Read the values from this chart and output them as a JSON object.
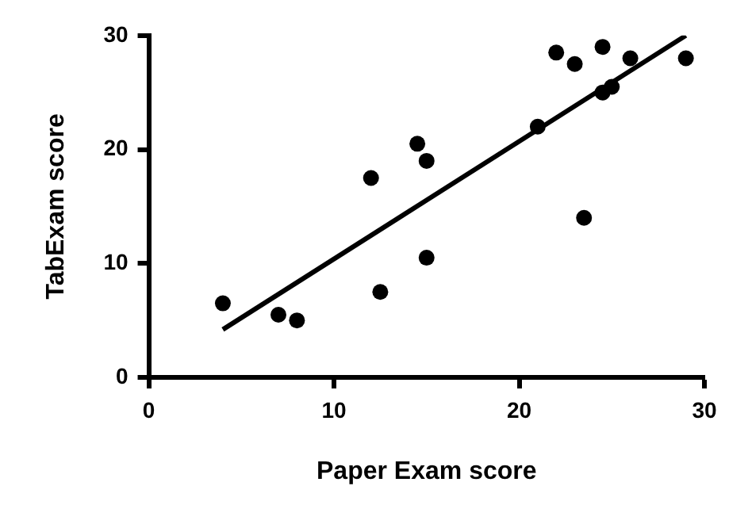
{
  "chart_data": {
    "type": "scatter",
    "xlabel": "Paper Exam score",
    "ylabel": "TabExam score",
    "xlim": [
      0,
      30
    ],
    "ylim": [
      0,
      30
    ],
    "xticks": [
      0,
      10,
      20,
      30
    ],
    "yticks": [
      0,
      10,
      20,
      30
    ],
    "grid": false,
    "legend": false,
    "marker": "circle",
    "series": [
      {
        "color": "#000000",
        "x": [
          4,
          7,
          8,
          12,
          12.5,
          14.5,
          15,
          15,
          21,
          22,
          23,
          23.5,
          24.5,
          24.5,
          25,
          26,
          29
        ],
        "values": [
          6.5,
          5.5,
          5,
          17.5,
          7.5,
          20.5,
          19,
          10.5,
          22,
          28.5,
          27.5,
          14,
          29,
          25,
          25.5,
          28,
          28
        ]
      },
      {
        "type": "line",
        "color": "#000000",
        "x": [
          4,
          29
        ],
        "values": [
          4.2,
          30
        ],
        "marker": "none",
        "line_style": "solid"
      }
    ]
  }
}
